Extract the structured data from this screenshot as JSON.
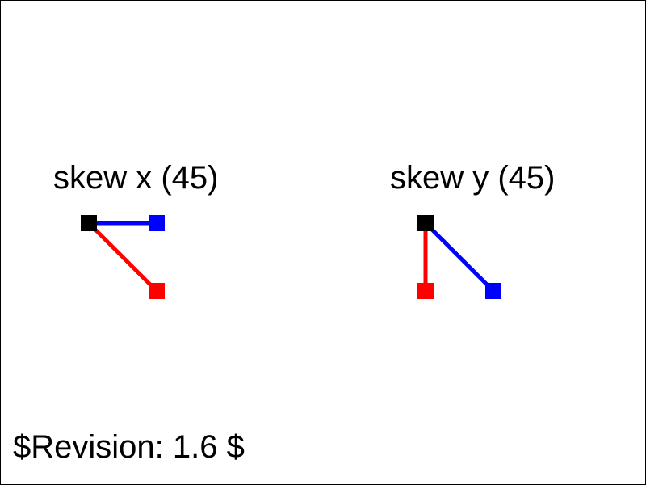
{
  "panels": [
    {
      "title": "skew x (45)",
      "axis_x_color": "#0000ff",
      "axis_y_color": "#ff0000",
      "origin_color": "#000000"
    },
    {
      "title": "skew y (45)",
      "axis_x_color": "#0000ff",
      "axis_y_color": "#ff0000",
      "origin_color": "#000000"
    }
  ],
  "footer": {
    "revision": "$Revision: 1.6 $"
  }
}
